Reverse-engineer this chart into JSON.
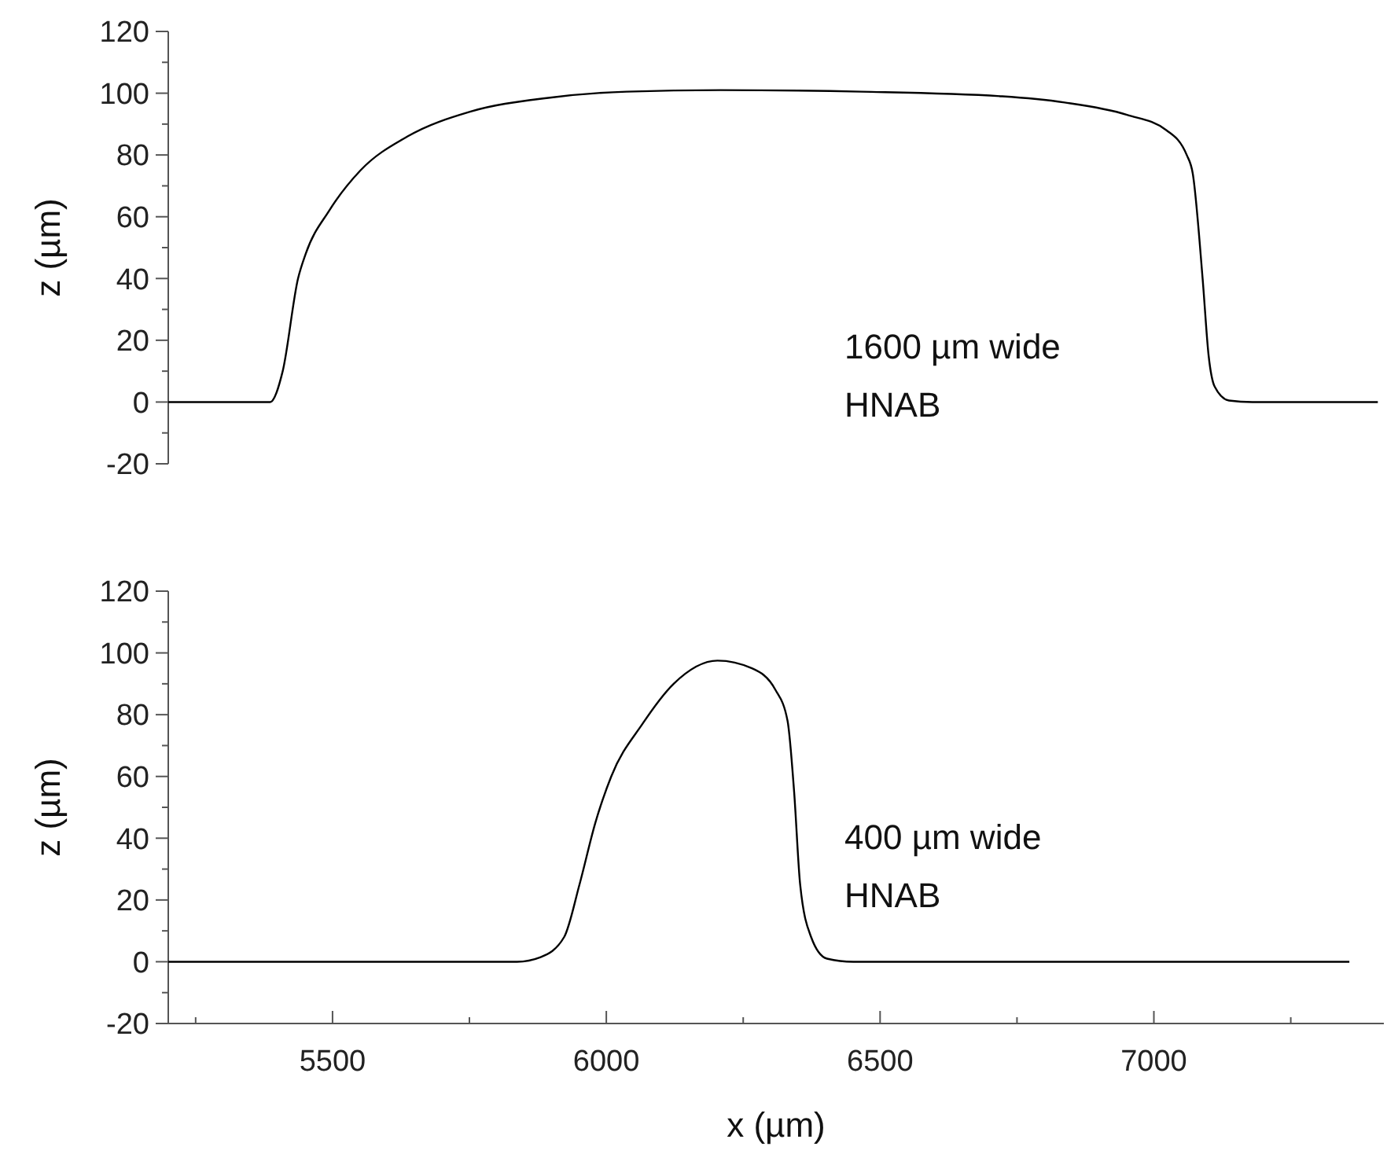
{
  "chart_data": [
    {
      "type": "line",
      "ylabel": "z (µm)",
      "xlim": [
        5200,
        7420
      ],
      "ylim": [
        -20,
        120
      ],
      "tick_labels": "y",
      "grid": false,
      "marker": "none",
      "line_style": "solid",
      "yticks": [
        -20,
        {
          "value": -10,
          "label": null
        },
        0,
        {
          "value": 10,
          "label": null
        },
        20,
        {
          "value": 30,
          "label": null
        },
        40,
        {
          "value": 50,
          "label": null
        },
        60,
        {
          "value": 70,
          "label": null
        },
        80,
        {
          "value": 90,
          "label": null
        },
        100,
        {
          "value": 110,
          "label": null
        },
        120
      ],
      "annotations": [
        "1600 µm wide",
        "HNAB"
      ],
      "series": [
        {
          "color": "#000000",
          "x": [
            5200,
            5386,
            5409,
            5437,
            5451,
            5494,
            5551,
            5637,
            5751,
            5894,
            6037,
            6209,
            6466,
            6723,
            6837,
            6951,
            7023,
            7060,
            7071,
            7089,
            7100,
            7111,
            7137,
            7180,
            7409
          ],
          "values": [
            0,
            0,
            10,
            40,
            48,
            62,
            75,
            86,
            94,
            98.5,
            100.5,
            101,
            100.5,
            99,
            97,
            93,
            88,
            80,
            74,
            40,
            15,
            5,
            0.5,
            0,
            0
          ]
        }
      ]
    },
    {
      "type": "line",
      "xlabel": "x (µm)",
      "ylabel": "z (µm)",
      "xlim": [
        5200,
        7420
      ],
      "ylim": [
        -20,
        120
      ],
      "grid": false,
      "marker": "none",
      "line_style": "solid",
      "xticks": [
        {
          "value": 5250,
          "label": null
        },
        5500,
        {
          "value": 5750,
          "label": null
        },
        6000,
        {
          "value": 6250,
          "label": null
        },
        6500,
        {
          "value": 6750,
          "label": null
        },
        7000,
        {
          "value": 7250,
          "label": null
        }
      ],
      "yticks": [
        -20,
        {
          "value": -10,
          "label": null
        },
        0,
        {
          "value": 10,
          "label": null
        },
        20,
        {
          "value": 30,
          "label": null
        },
        40,
        {
          "value": 50,
          "label": null
        },
        60,
        {
          "value": 70,
          "label": null
        },
        80,
        {
          "value": 90,
          "label": null
        },
        100,
        {
          "value": 110,
          "label": null
        },
        120
      ],
      "annotations": [
        "400 µm wide",
        "HNAB"
      ],
      "series": [
        {
          "color": "#000000",
          "x": [
            5200,
            5837,
            5880,
            5923,
            5951,
            5980,
            6009,
            6066,
            6123,
            6203,
            6266,
            6309,
            6331,
            6343,
            6354,
            6374,
            6403,
            6451,
            7357
          ],
          "values": [
            0,
            0,
            1.5,
            8,
            25,
            45,
            60,
            77,
            90,
            97.5,
            95,
            88,
            78,
            55,
            25,
            8,
            1,
            0,
            0
          ]
        }
      ]
    }
  ]
}
